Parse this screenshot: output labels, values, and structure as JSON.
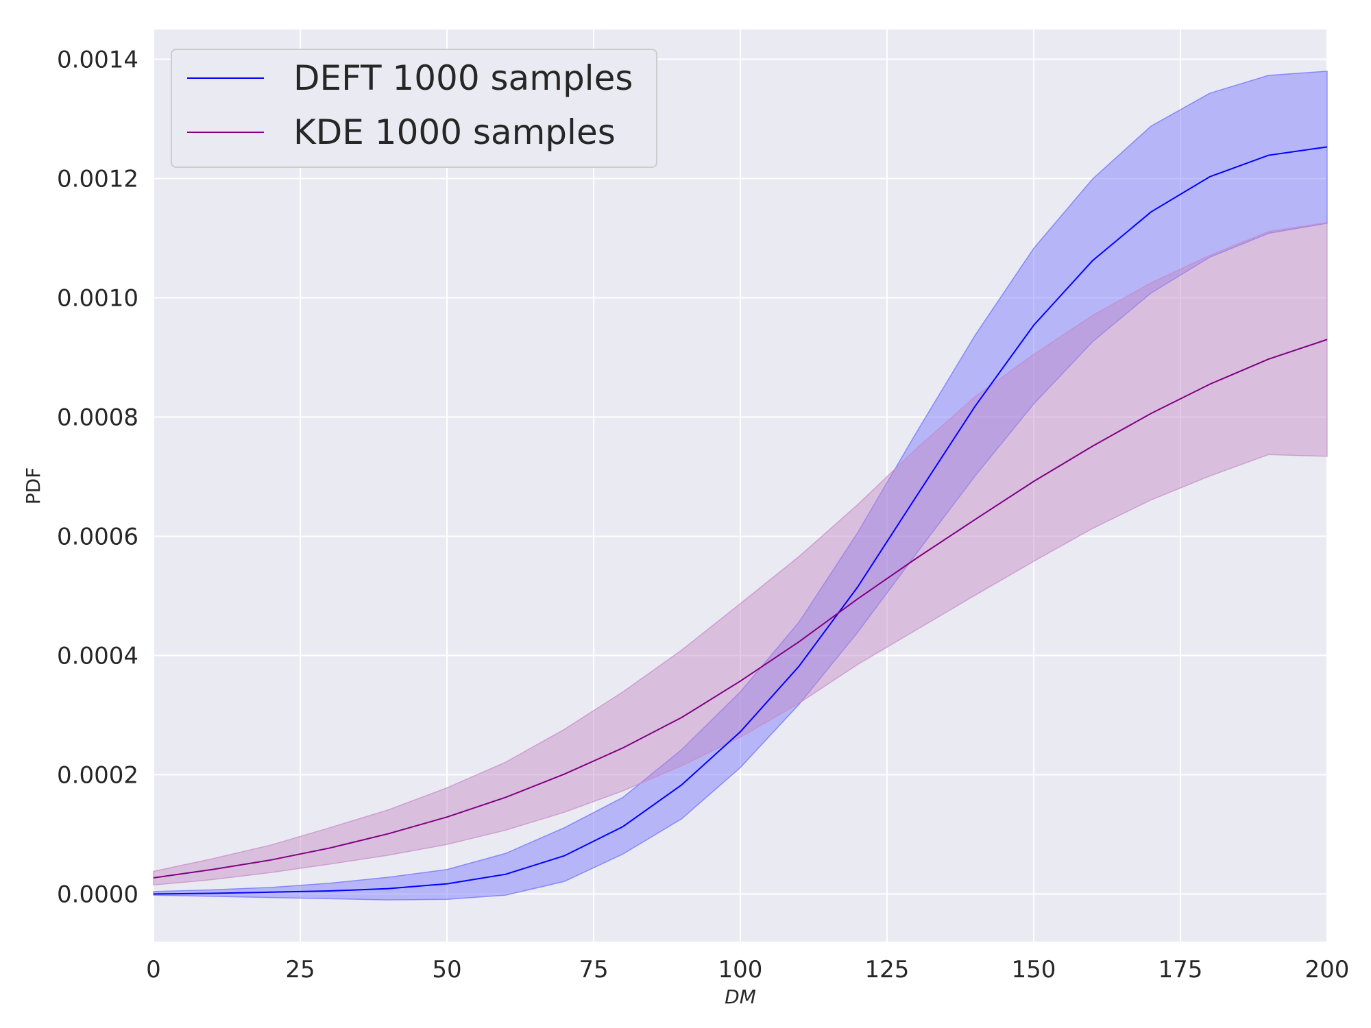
{
  "chart_data": {
    "type": "line",
    "title": "",
    "xlabel": "DM",
    "ylabel": "PDF",
    "xlim": [
      0,
      200
    ],
    "ylim": [
      -8e-05,
      0.00145
    ],
    "grid": true,
    "legend_position": "top-left",
    "x_ticks": [
      0,
      25,
      50,
      75,
      100,
      125,
      150,
      175,
      200
    ],
    "x_tick_labels": [
      "0",
      "25",
      "50",
      "75",
      "100",
      "125",
      "150",
      "175",
      "200"
    ],
    "y_ticks": [
      0,
      0.0002,
      0.0004,
      0.0006,
      0.0008,
      0.001,
      0.0012,
      0.0014
    ],
    "y_tick_labels": [
      "0.0000",
      "0.0002",
      "0.0004",
      "0.0006",
      "0.0008",
      "0.0010",
      "0.0012",
      "0.0014"
    ],
    "colors": {
      "background": "#eaeaf2",
      "grid": "#ffffff",
      "deft_line": "#0000ff",
      "deft_band": "#6b6bff",
      "kde_line": "#800080",
      "kde_band": "#c58ac6"
    },
    "x": [
      0,
      10,
      20,
      30,
      40,
      50,
      60,
      70,
      80,
      90,
      100,
      110,
      120,
      130,
      140,
      150,
      160,
      170,
      180,
      190,
      200
    ],
    "series": [
      {
        "name": "DEFT 1000 samples",
        "values": [
          0.0,
          1e-06,
          3e-06,
          5e-06,
          9e-06,
          1.7e-05,
          3.3e-05,
          6.4e-05,
          0.000113,
          0.000183,
          0.000272,
          0.000382,
          0.000515,
          0.000667,
          0.000818,
          0.000954,
          0.001062,
          0.001144,
          0.001203,
          0.001239,
          0.001253
        ],
        "lower": [
          -2e-06,
          -4e-06,
          -6e-06,
          -8e-06,
          -1e-05,
          -9e-06,
          -2e-06,
          2.1e-05,
          6.7e-05,
          0.000126,
          0.000212,
          0.000318,
          0.000439,
          0.000571,
          0.000701,
          0.000822,
          0.000926,
          0.001008,
          0.001068,
          0.001108,
          0.001125
        ],
        "upper": [
          4e-06,
          7e-06,
          1.1e-05,
          1.8e-05,
          2.8e-05,
          4.1e-05,
          6.8e-05,
          0.000111,
          0.000162,
          0.000242,
          0.000339,
          0.000456,
          0.000606,
          0.000774,
          0.000937,
          0.001083,
          0.001199,
          0.001288,
          0.001343,
          0.001373,
          0.00138
        ]
      },
      {
        "name": "KDE 1000 samples",
        "values": [
          2.7e-05,
          4.1e-05,
          5.7e-05,
          7.7e-05,
          0.000101,
          0.000129,
          0.000162,
          0.000201,
          0.000245,
          0.000296,
          0.000357,
          0.000423,
          0.000495,
          0.000563,
          0.000628,
          0.000692,
          0.000751,
          0.000806,
          0.000855,
          0.000897,
          0.00093
        ],
        "lower": [
          1.5e-05,
          2.4e-05,
          3.6e-05,
          5e-05,
          6.5e-05,
          8.3e-05,
          0.000107,
          0.000137,
          0.000173,
          0.000215,
          0.000263,
          0.00032,
          0.000385,
          0.000443,
          0.000501,
          0.000558,
          0.000613,
          0.000661,
          0.000701,
          0.000737,
          0.000734
        ],
        "upper": [
          3.8e-05,
          5.9e-05,
          8.2e-05,
          0.000111,
          0.000141,
          0.000178,
          0.000221,
          0.000276,
          0.000339,
          0.000409,
          0.000487,
          0.000566,
          0.000653,
          0.000747,
          0.000834,
          0.000905,
          0.00097,
          0.001025,
          0.001071,
          0.001111,
          0.001126
        ]
      }
    ]
  }
}
